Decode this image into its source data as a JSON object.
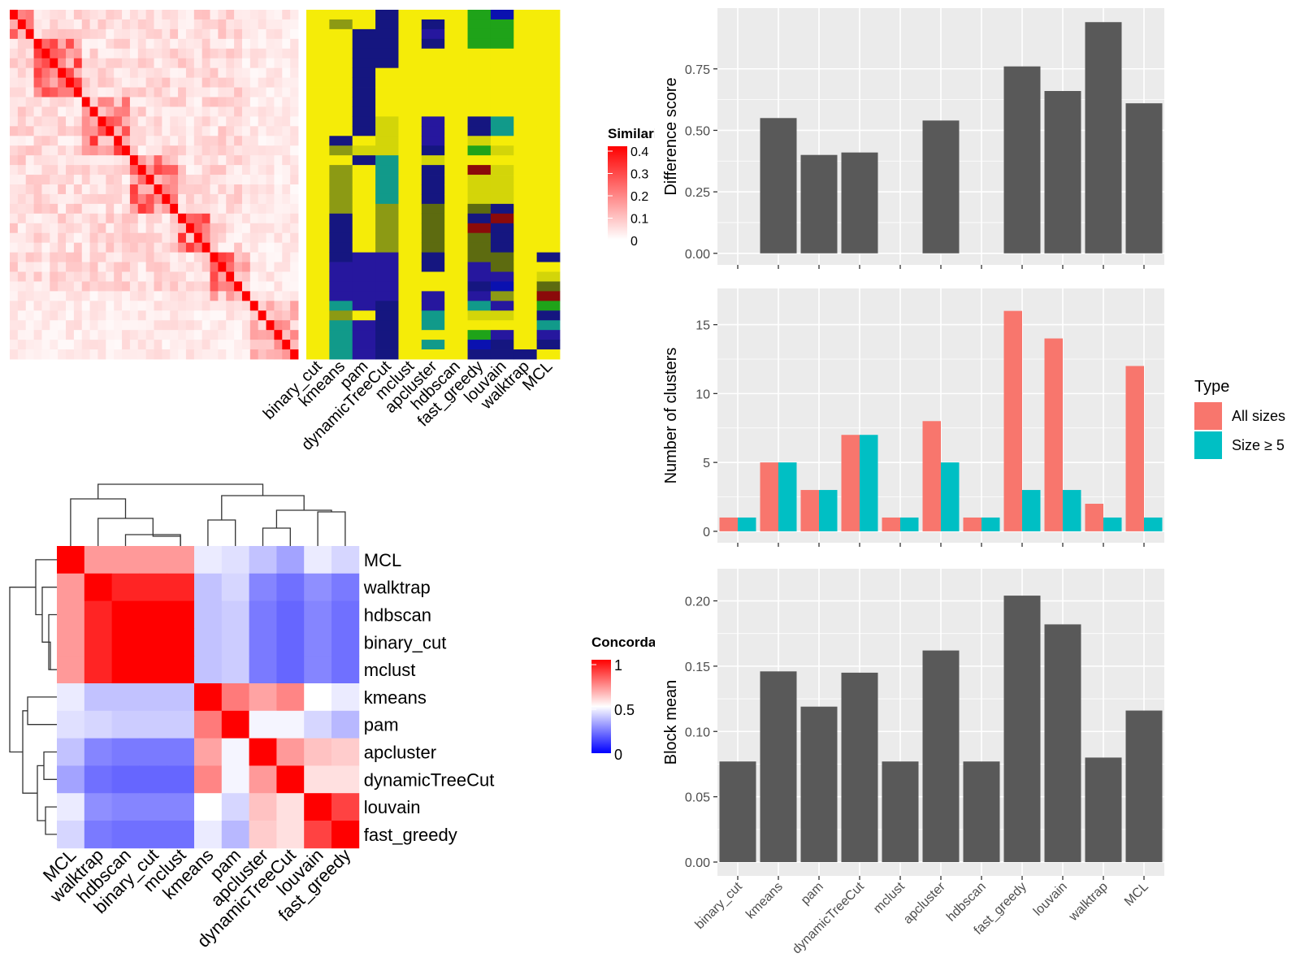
{
  "similarity_heatmap": {
    "legend_title": "Similarity",
    "legend_ticks": [
      "0.4",
      "0.3",
      "0.2",
      "0.1",
      "0"
    ],
    "n": 36
  },
  "cluster_assignment_heatmap": {
    "column_labels": [
      "binary_cut",
      "kmeans",
      "pam",
      "dynamicTreeCut",
      "mclust",
      "apcluster",
      "hdbscan",
      "fast_greedy",
      "louvain",
      "walktrap",
      "MCL"
    ]
  },
  "concordance_heatmap": {
    "legend_title": "Concordance",
    "legend_ticks": [
      "1",
      "0.5",
      "0"
    ],
    "row_labels": [
      "MCL",
      "walktrap",
      "hdbscan",
      "binary_cut",
      "mclust",
      "kmeans",
      "pam",
      "apcluster",
      "dynamicTreeCut",
      "louvain",
      "fast_greedy"
    ],
    "column_labels": [
      "MCL",
      "walktrap",
      "hdbscan",
      "binary_cut",
      "mclust",
      "kmeans",
      "pam",
      "apcluster",
      "dynamicTreeCut",
      "louvain",
      "fast_greedy"
    ],
    "values": [
      [
        1.0,
        0.7,
        0.7,
        0.7,
        0.7,
        0.46,
        0.44,
        0.38,
        0.32,
        0.46,
        0.42
      ],
      [
        0.7,
        1.0,
        0.93,
        0.93,
        0.93,
        0.38,
        0.42,
        0.26,
        0.22,
        0.28,
        0.24
      ],
      [
        0.7,
        0.93,
        1.0,
        1.0,
        1.0,
        0.38,
        0.4,
        0.24,
        0.2,
        0.26,
        0.22
      ],
      [
        0.7,
        0.93,
        1.0,
        1.0,
        1.0,
        0.38,
        0.4,
        0.24,
        0.2,
        0.26,
        0.22
      ],
      [
        0.7,
        0.93,
        1.0,
        1.0,
        1.0,
        0.38,
        0.4,
        0.24,
        0.2,
        0.26,
        0.22
      ],
      [
        0.46,
        0.38,
        0.38,
        0.38,
        0.38,
        1.0,
        0.76,
        0.68,
        0.74,
        0.5,
        0.46
      ],
      [
        0.44,
        0.42,
        0.4,
        0.4,
        0.4,
        0.76,
        1.0,
        0.48,
        0.48,
        0.42,
        0.36
      ],
      [
        0.38,
        0.26,
        0.24,
        0.24,
        0.24,
        0.68,
        0.48,
        1.0,
        0.7,
        0.62,
        0.6
      ],
      [
        0.32,
        0.22,
        0.2,
        0.2,
        0.2,
        0.74,
        0.48,
        0.7,
        1.0,
        0.56,
        0.56
      ],
      [
        0.46,
        0.28,
        0.26,
        0.26,
        0.26,
        0.5,
        0.42,
        0.62,
        0.56,
        1.0,
        0.87
      ],
      [
        0.42,
        0.24,
        0.22,
        0.22,
        0.22,
        0.46,
        0.36,
        0.6,
        0.56,
        0.87,
        1.0
      ]
    ]
  },
  "chart_data": [
    {
      "type": "bar",
      "categories": [
        "binary_cut",
        "kmeans",
        "pam",
        "dynamicTreeCut",
        "mclust",
        "apcluster",
        "hdbscan",
        "fast_greedy",
        "louvain",
        "walktrap",
        "MCL"
      ],
      "values": [
        0,
        0.55,
        0.4,
        0.41,
        0,
        0.54,
        0,
        0.76,
        0.66,
        0.94,
        0.61
      ],
      "title": "",
      "xlabel": "",
      "ylabel": "Difference score",
      "ylim": [
        0,
        0.95
      ],
      "yticks": [
        "0.00",
        "0.25",
        "0.50",
        "0.75"
      ],
      "color": "#595959",
      "grid": true
    },
    {
      "type": "bar",
      "categories": [
        "binary_cut",
        "kmeans",
        "pam",
        "dynamicTreeCut",
        "mclust",
        "apcluster",
        "hdbscan",
        "fast_greedy",
        "louvain",
        "walktrap",
        "MCL"
      ],
      "series": [
        {
          "name": "All sizes",
          "values": [
            1,
            5,
            3,
            7,
            1,
            8,
            1,
            16,
            14,
            2,
            12
          ],
          "color": "#F8766D"
        },
        {
          "name": "Size ≥ 5",
          "values": [
            1,
            5,
            3,
            7,
            1,
            5,
            1,
            3,
            3,
            1,
            1
          ],
          "color": "#00BFC4"
        }
      ],
      "title": "",
      "xlabel": "",
      "ylabel": "Number of clusters",
      "ylim": [
        0,
        16.8
      ],
      "yticks": [
        "0",
        "5",
        "10",
        "15"
      ],
      "legend_title": "Type",
      "legend_placement": "right",
      "grid": true
    },
    {
      "type": "bar",
      "categories": [
        "binary_cut",
        "kmeans",
        "pam",
        "dynamicTreeCut",
        "mclust",
        "apcluster",
        "hdbscan",
        "fast_greedy",
        "louvain",
        "walktrap",
        "MCL"
      ],
      "values": [
        0.077,
        0.146,
        0.119,
        0.145,
        0.077,
        0.162,
        0.077,
        0.204,
        0.182,
        0.08,
        0.116
      ],
      "title": "",
      "xlabel": "",
      "ylabel": "Block mean",
      "ylim": [
        0,
        0.214
      ],
      "yticks": [
        "0.00",
        "0.05",
        "0.10",
        "0.15",
        "0.20"
      ],
      "color": "#595959",
      "grid": true
    }
  ]
}
